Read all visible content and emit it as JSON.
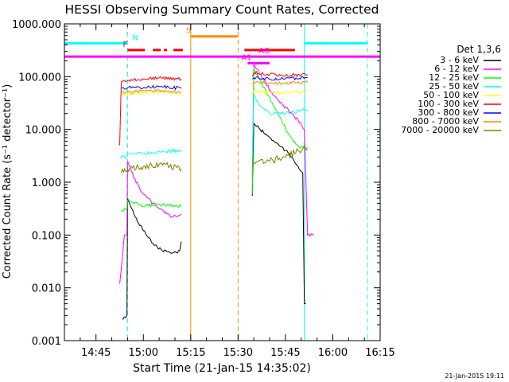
{
  "chart_data": {
    "type": "line",
    "title": "HESSI Observing Summary Count Rates, Corrected",
    "xlabel": "Start Time (21-Jan-15 14:35:02)",
    "ylabel": "Corrected Count Rate (s⁻¹ detector⁻¹)",
    "y_scale": "log",
    "ylim": [
      0.001,
      1000
    ],
    "xlim_minutes_after_14_35_02": [
      0,
      100
    ],
    "x_ticks": [
      "14:45",
      "15:00",
      "15:15",
      "15:30",
      "15:45",
      "16:00",
      "16:15"
    ],
    "x_tick_minutes": [
      10,
      25,
      40,
      55,
      70,
      85,
      100
    ],
    "y_ticks": [
      "0.001",
      "0.010",
      "0.100",
      "1.000",
      "10.000",
      "100.000",
      "1000.000"
    ],
    "y_tick_values": [
      0.001,
      0.01,
      0.1,
      1,
      10,
      100,
      1000
    ],
    "legend_header": "Det 1,3,6",
    "legend_placement": "right-outside",
    "series": [
      {
        "name": "3 - 6 keV",
        "color": "#000000",
        "segments": [
          {
            "t": [
              18.5,
              19.8,
              20.0,
              22.0,
              25.0,
              28.0,
              31.0,
              34.0,
              36.5,
              37.0
            ],
            "v": [
              0.0025,
              0.003,
              0.5,
              0.25,
              0.12,
              0.07,
              0.05,
              0.045,
              0.05,
              0.075
            ]
          },
          {
            "t": [
              59.5,
              60.0,
              62.0,
              65.0,
              68.0,
              70.0,
              72.0,
              74.0,
              75.5,
              76.0,
              76.5
            ],
            "v": [
              0.55,
              13,
              10,
              7,
              5,
              4,
              3,
              2,
              1.5,
              0.005,
              0.005
            ]
          }
        ]
      },
      {
        "name": "6 - 12 keV",
        "color": "#ff00ff",
        "segments": [
          {
            "t": [
              17.5,
              19.0,
              19.8,
              20.0,
              22.0,
              25.0,
              28.0,
              31.0,
              34.0,
              37.0
            ],
            "v": [
              0.012,
              0.1,
              0.1,
              2.5,
              1.2,
              0.6,
              0.4,
              0.3,
              0.22,
              0.25
            ]
          },
          {
            "t": [
              59.5,
              60.0,
              63.0,
              66.0,
              69.0,
              72.0,
              74.0,
              76.0,
              77.0,
              79.0
            ],
            "v": [
              1.2,
              170,
              90,
              45,
              30,
              20,
              15,
              10,
              0.1,
              0.1
            ]
          }
        ]
      },
      {
        "name": "12 - 25 keV",
        "color": "#00ff00",
        "segments": [
          {
            "t": [
              18.0,
              19.8,
              20.0,
              25.0,
              30.0,
              37.0
            ],
            "v": [
              0.3,
              0.3,
              0.45,
              0.35,
              0.38,
              0.35
            ]
          },
          {
            "t": [
              59.5,
              60.0,
              64.0,
              68.0,
              71.0,
              74.0,
              77.0
            ],
            "v": [
              0.6,
              140,
              50,
              18,
              8,
              5,
              4
            ]
          }
        ]
      },
      {
        "name": "25 - 50 keV",
        "color": "#00ffff",
        "segments": [
          {
            "t": [
              17.5,
              19.8,
              20.0,
              25.0,
              30.0,
              37.0
            ],
            "v": [
              3,
              3,
              3.5,
              3.5,
              3.8,
              4
            ]
          },
          {
            "t": [
              59.5,
              60.0,
              62.0,
              65.0,
              70.0,
              75.0,
              77.0
            ],
            "v": [
              3,
              45,
              28,
              20,
              20,
              23,
              22
            ]
          }
        ]
      },
      {
        "name": "50 - 100 keV",
        "color": "#ffff00",
        "segments": [
          {
            "t": [
              18.0,
              19.8,
              20.0,
              25.0,
              30.0,
              37.0
            ],
            "v": [
              45,
              45,
              48,
              50,
              52,
              50
            ]
          },
          {
            "t": [
              59.5,
              60.0,
              65.0,
              70.0,
              77.0
            ],
            "v": [
              45,
              55,
              50,
              50,
              52
            ]
          }
        ]
      },
      {
        "name": "100 - 300 keV",
        "color": "#ff0000",
        "segments": [
          {
            "t": [
              17.5,
              18.0,
              19.8,
              20.0,
              25.0,
              30.0,
              37.0
            ],
            "v": [
              5,
              80,
              85,
              85,
              90,
              95,
              90
            ]
          },
          {
            "t": [
              59.5,
              60.0,
              65.0,
              70.0,
              77.0
            ],
            "v": [
              100,
              120,
              110,
              105,
              110
            ]
          }
        ]
      },
      {
        "name": "300 - 800 keV",
        "color": "#0000ff",
        "segments": [
          {
            "t": [
              18.0,
              19.8,
              20.0,
              25.0,
              30.0,
              37.0
            ],
            "v": [
              60,
              60,
              62,
              62,
              65,
              60
            ]
          },
          {
            "t": [
              59.5,
              60.0,
              65.0,
              70.0,
              77.0
            ],
            "v": [
              90,
              95,
              90,
              92,
              95
            ]
          }
        ]
      },
      {
        "name": "800 - 7000 keV",
        "color": "#ff8c00",
        "segments": [
          {
            "t": [
              18.0,
              19.8,
              20.0,
              25.0,
              30.0,
              37.0
            ],
            "v": [
              50,
              52,
              50,
              55,
              55,
              50
            ]
          },
          {
            "t": [
              59.5,
              60.0,
              65.0,
              70.0,
              77.0
            ],
            "v": [
              75,
              78,
              76,
              75,
              78
            ]
          }
        ]
      },
      {
        "name": "7000 - 20000 keV",
        "color": "#808000",
        "segments": [
          {
            "t": [
              18.0,
              19.8,
              20.0,
              25.0,
              30.0,
              37.0
            ],
            "v": [
              1.5,
              1.6,
              1.8,
              2,
              2.2,
              1.8
            ]
          },
          {
            "t": [
              59.5,
              60.0,
              65.0,
              70.0,
              74.0,
              77.0
            ],
            "v": [
              2,
              2.3,
              2.5,
              3,
              4,
              4.5
            ]
          }
        ]
      }
    ],
    "vertical_lines": [
      {
        "t": 0.0,
        "color": "#00ffff",
        "style": "solid"
      },
      {
        "t": 20.0,
        "color": "#00ffff",
        "style": "dashed"
      },
      {
        "t": 40.0,
        "color": "#ff8c00",
        "style": "solid"
      },
      {
        "t": 55.0,
        "color": "#ff8c00",
        "style": "dashed"
      },
      {
        "t": 76.0,
        "color": "#00ffff",
        "style": "solid"
      },
      {
        "t": 96.0,
        "color": "#00ffff",
        "style": "dashed"
      }
    ],
    "flag_bars": [
      {
        "label": "N",
        "label_t": 21.5,
        "color": "#00ffff",
        "level": 430,
        "spans": [
          [
            0,
            20
          ],
          [
            76,
            96
          ]
        ],
        "style": "solid"
      },
      {
        "label": "S",
        "label_t": 38.5,
        "color": "#ff8c00",
        "level": 580,
        "spans": [
          [
            40,
            55
          ]
        ],
        "style": "solid"
      },
      {
        "label": "F",
        "label_t": 18.5,
        "color": "#ff0000",
        "level": 320,
        "spans": [
          [
            20,
            25.5
          ],
          [
            28,
            30.5
          ],
          [
            31.5,
            32.5
          ],
          [
            34.5,
            37.5
          ],
          [
            57,
            73
          ]
        ],
        "style": "solid"
      },
      {
        "label": "AO",
        "label_t": 61.5,
        "color": "#ff00ff",
        "level": 240,
        "spans": [
          [
            0,
            100
          ]
        ],
        "style": "solid"
      },
      {
        "label": "A1",
        "label_t": 56.0,
        "color": "#ff00ff",
        "level": 180,
        "spans": [
          [
            58,
            65
          ]
        ],
        "style": "solid"
      }
    ]
  },
  "footer": {
    "timestamp": "21-Jan-2015 19:11"
  }
}
